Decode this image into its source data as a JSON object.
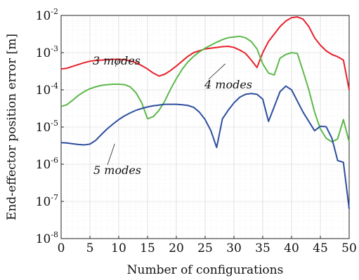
{
  "chart_data": {
    "type": "line",
    "xlabel": "Number of configurations",
    "ylabel": "End-effector position error [m]",
    "xlim": [
      0,
      50
    ],
    "ylim_exponent": [
      -8,
      -2
    ],
    "yscale": "log",
    "grid": true,
    "x_ticks": [
      0,
      5,
      10,
      15,
      20,
      25,
      30,
      35,
      40,
      45,
      50
    ],
    "y_ticks": [
      {
        "base": "10",
        "exp": "-8",
        "value": -8
      },
      {
        "base": "10",
        "exp": "-7",
        "value": -7
      },
      {
        "base": "10",
        "exp": "-6",
        "value": -6
      },
      {
        "base": "10",
        "exp": "-5",
        "value": -5
      },
      {
        "base": "10",
        "exp": "-4",
        "value": -4
      },
      {
        "base": "10",
        "exp": "-3",
        "value": -3
      },
      {
        "base": "10",
        "exp": "-2",
        "value": -2
      }
    ],
    "x": [
      0,
      1,
      2,
      3,
      4,
      5,
      6,
      7,
      8,
      9,
      10,
      11,
      12,
      13,
      14,
      15,
      16,
      17,
      18,
      19,
      20,
      21,
      22,
      23,
      24,
      25,
      26,
      27,
      28,
      29,
      30,
      31,
      32,
      33,
      34,
      35,
      36,
      37,
      38,
      39,
      40,
      41,
      42,
      43,
      44,
      45,
      46,
      47,
      48,
      49,
      50
    ],
    "series": [
      {
        "name": "3 modes",
        "color": "#e8202a",
        "log10_values": [
          -3.44,
          -3.42,
          -3.37,
          -3.32,
          -3.27,
          -3.23,
          -3.21,
          -3.2,
          -3.19,
          -3.18,
          -3.18,
          -3.19,
          -3.22,
          -3.27,
          -3.35,
          -3.44,
          -3.55,
          -3.63,
          -3.58,
          -3.48,
          -3.36,
          -3.23,
          -3.1,
          -3.0,
          -2.95,
          -2.9,
          -2.88,
          -2.86,
          -2.84,
          -2.83,
          -2.86,
          -2.93,
          -3.02,
          -3.2,
          -3.4,
          -3.0,
          -2.7,
          -2.5,
          -2.3,
          -2.15,
          -2.06,
          -2.04,
          -2.1,
          -2.3,
          -2.6,
          -2.8,
          -2.95,
          -3.05,
          -3.11,
          -3.2,
          -4.0
        ]
      },
      {
        "name": "4 modes",
        "color": "#5cb84a",
        "log10_values": [
          -4.45,
          -4.4,
          -4.28,
          -4.15,
          -4.05,
          -3.97,
          -3.92,
          -3.88,
          -3.86,
          -3.85,
          -3.85,
          -3.86,
          -3.92,
          -4.08,
          -4.35,
          -4.78,
          -4.72,
          -4.55,
          -4.3,
          -3.98,
          -3.7,
          -3.45,
          -3.25,
          -3.1,
          -2.98,
          -2.88,
          -2.8,
          -2.72,
          -2.65,
          -2.6,
          -2.58,
          -2.56,
          -2.6,
          -2.7,
          -2.9,
          -3.3,
          -3.55,
          -3.6,
          -3.15,
          -3.05,
          -3.0,
          -3.02,
          -3.5,
          -4.0,
          -4.6,
          -5.05,
          -5.3,
          -5.4,
          -5.32,
          -4.8,
          -5.4
        ]
      },
      {
        "name": "5 modes",
        "color": "#2c4e9e",
        "log10_values": [
          -5.42,
          -5.43,
          -5.45,
          -5.47,
          -5.48,
          -5.46,
          -5.36,
          -5.2,
          -5.05,
          -4.92,
          -4.8,
          -4.7,
          -4.62,
          -4.55,
          -4.5,
          -4.46,
          -4.43,
          -4.41,
          -4.39,
          -4.39,
          -4.39,
          -4.4,
          -4.42,
          -4.47,
          -4.6,
          -4.8,
          -5.1,
          -5.55,
          -4.78,
          -4.55,
          -4.35,
          -4.2,
          -4.12,
          -4.1,
          -4.12,
          -4.25,
          -4.85,
          -4.45,
          -4.05,
          -3.9,
          -4.0,
          -4.3,
          -4.6,
          -4.85,
          -5.1,
          -4.98,
          -4.99,
          -5.3,
          -5.9,
          -5.95,
          -7.2
        ]
      }
    ],
    "annotations": [
      {
        "text": "3 modes",
        "series": "3 modes"
      },
      {
        "text": "4 modes",
        "series": "4 modes"
      },
      {
        "text": "5 modes",
        "series": "5 modes"
      }
    ]
  }
}
